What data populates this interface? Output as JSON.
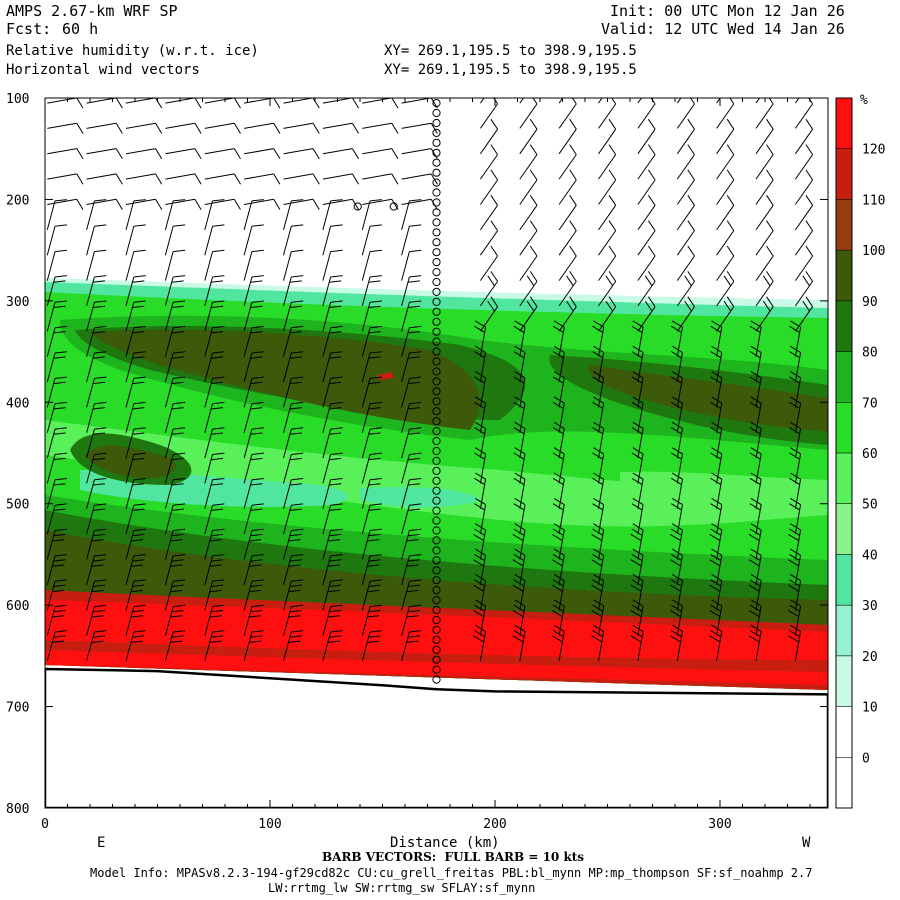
{
  "header": {
    "model": "AMPS 2.67-km WRF SP",
    "fcst_label": "Fcst:",
    "fcst_value": "60 h",
    "field1": "Relative humidity (w.r.t. ice)",
    "field2": "Horizontal wind vectors",
    "init": "Init: 00 UTC Mon 12 Jan 26",
    "valid": "Valid: 12 UTC Wed 14 Jan 26",
    "xy1": "XY= 269.1,195.5 to 398.9,195.5",
    "xy2": "XY= 269.1,195.5 to 398.9,195.5"
  },
  "footer": {
    "barb_note": "BARB VECTORS:  FULL BARB = 10 kts",
    "model_info": "Model Info: MPASv8.2.3-194-gf29cd82c CU:cu_grell_freitas PBL:bl_mynn MP:mp_thompson SF:sf_noahmp 2.7",
    "model_info2": "LW:rrtmg_lw SW:rrtmg_sw SFLAY:sf_mynn"
  },
  "axes": {
    "xlabel": "Distance (km)",
    "left_end": "E",
    "right_end": "W",
    "x_ticks": [
      "0",
      "100",
      "200",
      "300"
    ],
    "y_ticks": [
      "100",
      "200",
      "300",
      "400",
      "500",
      "600",
      "700",
      "800"
    ],
    "y_cut_label": "…"
  },
  "colorbar": {
    "unit": "%",
    "labels": [
      "120",
      "110",
      "100",
      "90",
      "80",
      "70",
      "60",
      "50",
      "40",
      "30",
      "20",
      "10",
      "0"
    ],
    "colors": [
      "#ff1010",
      "#c81e10",
      "#963c10",
      "#3c5a0a",
      "#1e780f",
      "#1eb41e",
      "#28dc28",
      "#5af05a",
      "#8cf08c",
      "#50e6a0",
      "#96f0d2",
      "#c8fae6",
      "#ffffff",
      "#ffffff",
      "#ffffff",
      "#ffffff"
    ]
  },
  "chart_data": {
    "type": "heatmap",
    "title": "",
    "xlabel": "Distance (km)",
    "ylabel": "",
    "xlim": [
      0,
      348
    ],
    "ylim": [
      800,
      100
    ],
    "x_ticks": [
      0,
      100,
      200,
      300
    ],
    "y_ticks": [
      100,
      200,
      300,
      400,
      500,
      600,
      700,
      800
    ],
    "colorbar_levels": [
      0,
      10,
      20,
      30,
      40,
      50,
      60,
      70,
      80,
      90,
      100,
      110,
      120
    ],
    "terrain_surface_pressure": [
      [
        0,
        663
      ],
      [
        50,
        665
      ],
      [
        100,
        672
      ],
      [
        150,
        679
      ],
      [
        174,
        683
      ],
      [
        200,
        685
      ],
      [
        250,
        686
      ],
      [
        300,
        687
      ],
      [
        348,
        688
      ]
    ],
    "rh_bands": [
      {
        "rh": 40,
        "profile": [
          [
            0,
            280
          ],
          [
            100,
            290
          ],
          [
            200,
            300
          ],
          [
            300,
            306
          ],
          [
            348,
            309
          ]
        ]
      },
      {
        "rh": 60,
        "profile": [
          [
            0,
            292
          ],
          [
            100,
            300
          ],
          [
            200,
            315
          ],
          [
            300,
            320
          ],
          [
            348,
            322
          ]
        ]
      },
      {
        "rh": 80,
        "profile": [
          [
            0,
            300
          ],
          [
            100,
            305
          ],
          [
            200,
            330
          ],
          [
            300,
            350
          ],
          [
            348,
            355
          ]
        ]
      },
      {
        "rh": 100,
        "profile": [
          [
            0,
            505
          ],
          [
            100,
            540
          ],
          [
            200,
            570
          ],
          [
            300,
            580
          ],
          [
            348,
            582
          ]
        ]
      },
      {
        "rh": 120,
        "profile": [
          [
            0,
            600
          ],
          [
            100,
            605
          ],
          [
            200,
            615
          ],
          [
            300,
            625
          ],
          [
            348,
            630
          ]
        ]
      }
    ],
    "calm_column_km": 174
  }
}
